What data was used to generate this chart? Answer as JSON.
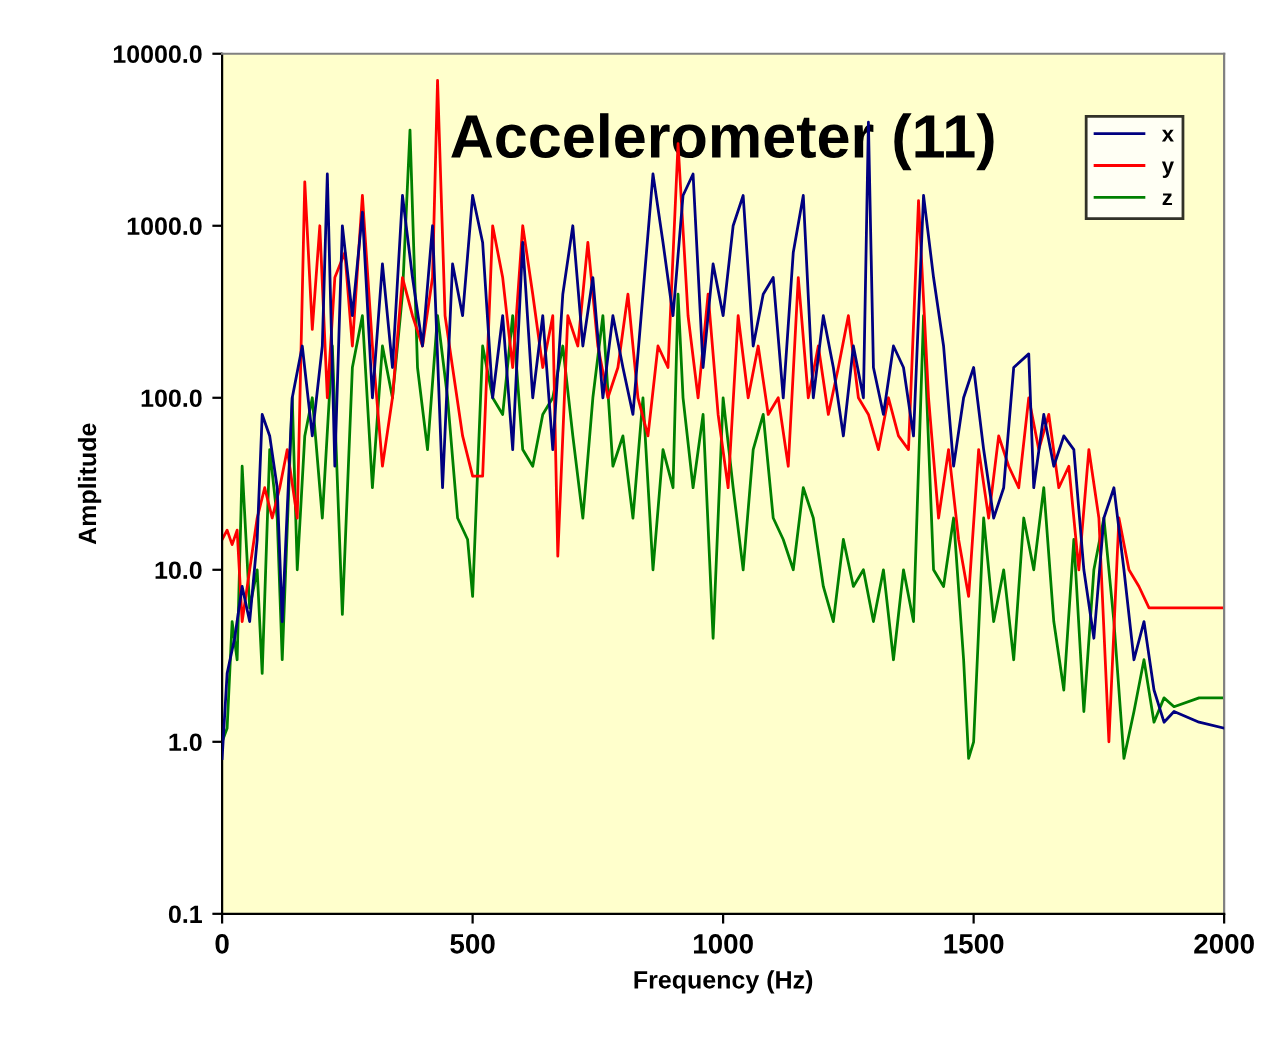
{
  "chart_data": {
    "type": "line",
    "title": "Accelerometer (11)",
    "xlabel": "Frequency (Hz)",
    "ylabel": "Amplitude",
    "log": "y",
    "xlim": [
      0,
      2000
    ],
    "xticks": [
      0,
      500,
      1000,
      1500,
      2000
    ],
    "ylim": [
      0.1,
      10000
    ],
    "yticks": [
      {
        "value": 0.1,
        "label": "0.1"
      },
      {
        "value": 1,
        "label": "1.0"
      },
      {
        "value": 10,
        "label": "10.0"
      },
      {
        "value": 100,
        "label": "100.0"
      },
      {
        "value": 1000,
        "label": "1000.0"
      },
      {
        "value": 10000,
        "label": "10000.0"
      }
    ],
    "grid": false,
    "legend": "top right",
    "marker": "none",
    "line_style": "solid",
    "series": [
      {
        "name": "x",
        "color": "#000080",
        "x": [
          0,
          10,
          25,
          40,
          55,
          70,
          80,
          95,
          110,
          120,
          140,
          160,
          180,
          200,
          210,
          225,
          240,
          260,
          280,
          300,
          320,
          340,
          360,
          380,
          400,
          420,
          440,
          460,
          480,
          500,
          520,
          540,
          560,
          580,
          600,
          620,
          640,
          660,
          680,
          700,
          720,
          740,
          760,
          780,
          800,
          820,
          840,
          860,
          880,
          900,
          920,
          940,
          960,
          980,
          1000,
          1020,
          1040,
          1060,
          1080,
          1100,
          1120,
          1140,
          1160,
          1180,
          1200,
          1220,
          1240,
          1260,
          1280,
          1290,
          1300,
          1320,
          1340,
          1360,
          1380,
          1400,
          1420,
          1440,
          1460,
          1480,
          1500,
          1520,
          1540,
          1560,
          1580,
          1610,
          1620,
          1640,
          1660,
          1680,
          1700,
          1720,
          1740,
          1760,
          1780,
          1800,
          1820,
          1840,
          1860,
          1880,
          1900,
          1950,
          2000
        ],
        "values": [
          0.8,
          2.5,
          4,
          8,
          5,
          15,
          80,
          60,
          30,
          5,
          100,
          200,
          60,
          200,
          2000,
          40,
          1000,
          300,
          1200,
          100,
          600,
          150,
          1500,
          500,
          200,
          1000,
          30,
          600,
          300,
          1500,
          800,
          100,
          300,
          50,
          800,
          100,
          300,
          50,
          400,
          1000,
          200,
          500,
          100,
          300,
          150,
          80,
          400,
          2000,
          800,
          300,
          1500,
          2000,
          150,
          600,
          300,
          1000,
          1500,
          200,
          400,
          500,
          100,
          700,
          1500,
          100,
          300,
          150,
          60,
          200,
          100,
          4000,
          150,
          80,
          200,
          150,
          60,
          1500,
          500,
          200,
          40,
          100,
          150,
          50,
          20,
          30,
          150,
          180,
          30,
          80,
          40,
          60,
          50,
          10,
          4,
          20,
          30,
          10,
          3,
          5,
          2,
          1.3,
          1.5,
          1.3,
          1.2
        ]
      },
      {
        "name": "y",
        "color": "#ff0000",
        "x": [
          0,
          10,
          20,
          30,
          40,
          55,
          70,
          85,
          100,
          115,
          130,
          150,
          165,
          180,
          195,
          210,
          225,
          245,
          260,
          280,
          300,
          320,
          340,
          360,
          380,
          400,
          420,
          430,
          445,
          460,
          480,
          500,
          520,
          540,
          560,
          580,
          600,
          620,
          640,
          660,
          670,
          690,
          710,
          730,
          750,
          770,
          790,
          810,
          830,
          850,
          870,
          890,
          910,
          930,
          950,
          970,
          990,
          1010,
          1030,
          1050,
          1070,
          1090,
          1110,
          1130,
          1150,
          1170,
          1190,
          1210,
          1230,
          1250,
          1270,
          1290,
          1310,
          1330,
          1350,
          1370,
          1390,
          1410,
          1430,
          1450,
          1470,
          1490,
          1510,
          1530,
          1550,
          1570,
          1590,
          1610,
          1630,
          1650,
          1670,
          1690,
          1710,
          1730,
          1750,
          1770,
          1790,
          1810,
          1830,
          1850,
          1900,
          1950,
          2000
        ],
        "values": [
          15,
          17,
          14,
          17,
          5,
          10,
          20,
          30,
          20,
          30,
          50,
          20,
          1800,
          250,
          1000,
          100,
          500,
          700,
          200,
          1500,
          200,
          40,
          100,
          500,
          300,
          200,
          500,
          7000,
          300,
          150,
          60,
          35,
          35,
          1000,
          500,
          150,
          1000,
          400,
          150,
          300,
          12,
          300,
          200,
          800,
          200,
          100,
          150,
          400,
          100,
          60,
          200,
          150,
          3000,
          300,
          100,
          400,
          80,
          30,
          300,
          100,
          200,
          80,
          100,
          40,
          500,
          100,
          200,
          80,
          150,
          300,
          100,
          80,
          50,
          100,
          60,
          50,
          1400,
          100,
          20,
          50,
          15,
          7,
          50,
          20,
          60,
          40,
          30,
          100,
          50,
          80,
          30,
          40,
          10,
          50,
          20,
          1,
          20,
          10,
          8,
          6,
          6,
          6,
          6
        ]
      },
      {
        "name": "z",
        "color": "#008000",
        "x": [
          0,
          10,
          20,
          30,
          40,
          55,
          70,
          80,
          95,
          110,
          120,
          140,
          150,
          165,
          180,
          200,
          220,
          240,
          260,
          280,
          300,
          320,
          340,
          360,
          375,
          390,
          410,
          430,
          450,
          470,
          490,
          500,
          520,
          540,
          560,
          580,
          600,
          620,
          640,
          660,
          680,
          700,
          720,
          740,
          760,
          780,
          800,
          820,
          840,
          860,
          880,
          900,
          910,
          920,
          940,
          960,
          980,
          1000,
          1020,
          1040,
          1060,
          1080,
          1100,
          1120,
          1140,
          1160,
          1180,
          1200,
          1220,
          1240,
          1260,
          1280,
          1300,
          1320,
          1340,
          1360,
          1380,
          1400,
          1420,
          1440,
          1460,
          1480,
          1490,
          1500,
          1520,
          1540,
          1560,
          1580,
          1600,
          1620,
          1640,
          1660,
          1680,
          1700,
          1720,
          1740,
          1760,
          1780,
          1800,
          1820,
          1840,
          1860,
          1880,
          1900,
          1950,
          2000
        ],
        "values": [
          1,
          1.2,
          5,
          3,
          40,
          6,
          10,
          2.5,
          50,
          20,
          3,
          100,
          10,
          60,
          100,
          20,
          200,
          5.5,
          150,
          300,
          30,
          200,
          100,
          400,
          3600,
          150,
          50,
          300,
          100,
          20,
          15,
          7,
          200,
          100,
          80,
          300,
          50,
          40,
          80,
          100,
          200,
          60,
          20,
          100,
          300,
          40,
          60,
          20,
          100,
          10,
          50,
          30,
          400,
          100,
          30,
          80,
          4,
          100,
          30,
          10,
          50,
          80,
          20,
          15,
          10,
          30,
          20,
          8,
          5,
          15,
          8,
          10,
          5,
          10,
          3,
          10,
          5,
          300,
          10,
          8,
          20,
          3,
          0.8,
          1,
          20,
          5,
          10,
          3,
          20,
          10,
          30,
          5,
          2,
          15,
          1.5,
          10,
          20,
          5,
          0.8,
          1.5,
          3,
          1.3,
          1.8,
          1.6,
          1.8,
          1.8
        ]
      }
    ]
  }
}
